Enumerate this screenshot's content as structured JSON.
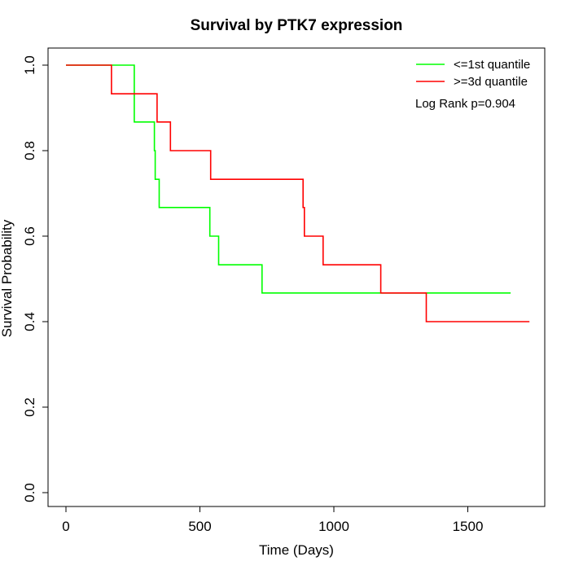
{
  "chart_data": {
    "type": "line",
    "step": true,
    "title": "Survival by PTK7 expression",
    "xlabel": "Time (Days)",
    "ylabel": "Survival Probability",
    "xlim": [
      0,
      1800
    ],
    "ylim": [
      0,
      1
    ],
    "xticks": [
      0,
      500,
      1000,
      1500
    ],
    "xtick_labels": [
      "0",
      "500",
      "1000",
      "1500"
    ],
    "yticks": [
      0.0,
      0.2,
      0.4,
      0.6,
      0.8,
      1.0
    ],
    "ytick_labels": [
      "0.0",
      "0.2",
      "0.4",
      "0.6",
      "0.8",
      "1.0"
    ],
    "grid": false,
    "legend_position": "top-right",
    "annotation": "Log Rank p=0.904",
    "series": [
      {
        "name": "<=1st quantile",
        "color": "#00ff00",
        "x": [
          0,
          255,
          255,
          330,
          330,
          333,
          333,
          348,
          348,
          537,
          537,
          570,
          570,
          732,
          732,
          1660
        ],
        "y": [
          1.0,
          1.0,
          0.867,
          0.867,
          0.8,
          0.8,
          0.733,
          0.733,
          0.667,
          0.667,
          0.6,
          0.6,
          0.533,
          0.533,
          0.467,
          0.467
        ]
      },
      {
        "name": ">=3d quantile",
        "color": "#ff0000",
        "x": [
          0,
          170,
          170,
          340,
          340,
          390,
          390,
          540,
          540,
          885,
          885,
          890,
          890,
          960,
          960,
          1175,
          1175,
          1345,
          1345,
          1730
        ],
        "y": [
          1.0,
          1.0,
          0.933,
          0.933,
          0.867,
          0.867,
          0.8,
          0.8,
          0.733,
          0.733,
          0.667,
          0.667,
          0.6,
          0.6,
          0.533,
          0.533,
          0.467,
          0.467,
          0.4,
          0.4
        ]
      }
    ]
  }
}
